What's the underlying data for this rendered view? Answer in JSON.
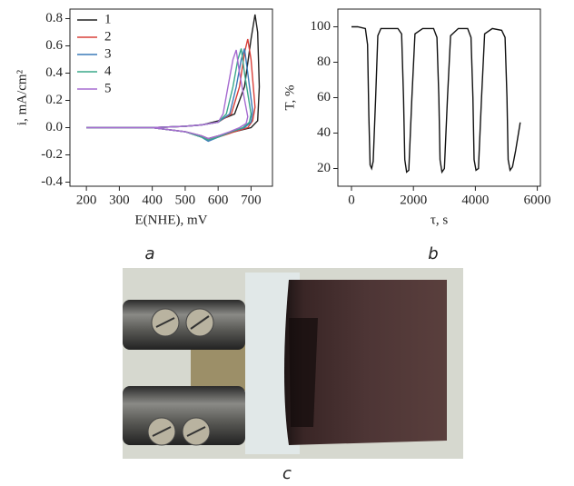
{
  "chart_data": [
    {
      "type": "line",
      "x_label": "E(NHE), mV",
      "y_label": "i, mA/cm²",
      "xlim": [
        150,
        765
      ],
      "ylim": [
        -0.43,
        0.87
      ],
      "xticks": [
        200,
        300,
        400,
        500,
        600,
        700
      ],
      "yticks": [
        -0.4,
        -0.2,
        {
          "value": 0,
          "label": "0.0"
        },
        0.2,
        0.4,
        0.6,
        0.8
      ],
      "legend": "upper left",
      "series": [
        {
          "name": "1",
          "color": "#222222",
          "x": [
            200,
            300,
            400,
            500,
            550,
            600,
            650,
            680,
            700,
            712,
            720,
            725,
            720,
            700,
            650,
            600,
            570,
            550,
            500,
            400,
            300,
            200
          ],
          "values": [
            0,
            0,
            0,
            0.01,
            0.02,
            0.05,
            0.1,
            0.3,
            0.65,
            0.83,
            0.7,
            0.3,
            0.05,
            0,
            -0.03,
            -0.06,
            -0.08,
            -0.06,
            -0.03,
            0,
            0,
            0
          ]
        },
        {
          "name": "2",
          "color": "#d9403a",
          "x": [
            200,
            300,
            400,
            500,
            550,
            600,
            640,
            665,
            680,
            690,
            700,
            712,
            705,
            690,
            650,
            600,
            570,
            550,
            500,
            400,
            300,
            200
          ],
          "values": [
            0,
            0,
            0,
            0.01,
            0.02,
            0.04,
            0.1,
            0.3,
            0.55,
            0.65,
            0.5,
            0.15,
            0.05,
            0,
            -0.03,
            -0.07,
            -0.09,
            -0.07,
            -0.03,
            0,
            0,
            0
          ]
        },
        {
          "name": "3",
          "color": "#3a7ab8",
          "x": [
            200,
            300,
            400,
            500,
            550,
            600,
            635,
            655,
            670,
            680,
            690,
            705,
            700,
            680,
            640,
            600,
            570,
            550,
            500,
            400,
            300,
            200
          ],
          "values": [
            0,
            0,
            0,
            0.01,
            0.02,
            0.04,
            0.1,
            0.3,
            0.5,
            0.58,
            0.4,
            0.12,
            0.04,
            0,
            -0.03,
            -0.07,
            -0.1,
            -0.07,
            -0.03,
            0,
            0,
            0
          ]
        },
        {
          "name": "4",
          "color": "#3aa88a",
          "x": [
            200,
            300,
            400,
            500,
            550,
            600,
            625,
            645,
            660,
            670,
            680,
            700,
            695,
            675,
            640,
            600,
            570,
            550,
            500,
            400,
            300,
            200
          ],
          "values": [
            0,
            0,
            0,
            0.01,
            0.02,
            0.04,
            0.1,
            0.3,
            0.5,
            0.58,
            0.4,
            0.1,
            0.04,
            0,
            -0.03,
            -0.07,
            -0.09,
            -0.07,
            -0.03,
            0,
            0,
            0
          ]
        },
        {
          "name": "5",
          "color": "#a66bd0",
          "x": [
            200,
            300,
            400,
            500,
            550,
            600,
            615,
            630,
            645,
            655,
            665,
            690,
            685,
            665,
            635,
            600,
            570,
            550,
            500,
            400,
            300,
            200
          ],
          "values": [
            0,
            0,
            0,
            0.01,
            0.02,
            0.04,
            0.1,
            0.3,
            0.5,
            0.57,
            0.4,
            0.08,
            0.03,
            0,
            -0.03,
            -0.06,
            -0.08,
            -0.06,
            -0.03,
            0,
            0,
            0
          ]
        }
      ]
    },
    {
      "type": "line",
      "x_label": "τ, s",
      "y_label": "T, %",
      "xlim": [
        -440,
        6100
      ],
      "ylim": [
        10,
        110
      ],
      "xticks": [
        0,
        2000,
        4000,
        6000
      ],
      "yticks": [
        20,
        40,
        60,
        80,
        100
      ],
      "series": [
        {
          "color": "#111111",
          "x": [
            0,
            200,
            450,
            520,
            560,
            600,
            650,
            700,
            780,
            850,
            950,
            1200,
            1500,
            1620,
            1680,
            1720,
            1780,
            1850,
            1950,
            2050,
            2300,
            2650,
            2760,
            2820,
            2860,
            2920,
            3000,
            3100,
            3200,
            3450,
            3750,
            3860,
            3920,
            3960,
            4020,
            4100,
            4200,
            4300,
            4550,
            4850,
            4960,
            5020,
            5060,
            5120,
            5200,
            5300,
            5450
          ],
          "values": [
            100,
            100,
            99,
            90,
            50,
            22,
            20,
            24,
            60,
            95,
            99,
            99,
            99,
            96,
            60,
            25,
            18,
            19,
            60,
            96,
            99,
            99,
            94,
            60,
            25,
            18,
            20,
            60,
            95,
            99,
            99,
            94,
            60,
            25,
            19,
            20,
            60,
            96,
            99,
            98,
            94,
            60,
            25,
            19,
            21,
            30,
            46
          ]
        }
      ]
    }
  ],
  "panel_labels": [
    "a",
    "b",
    "c"
  ]
}
